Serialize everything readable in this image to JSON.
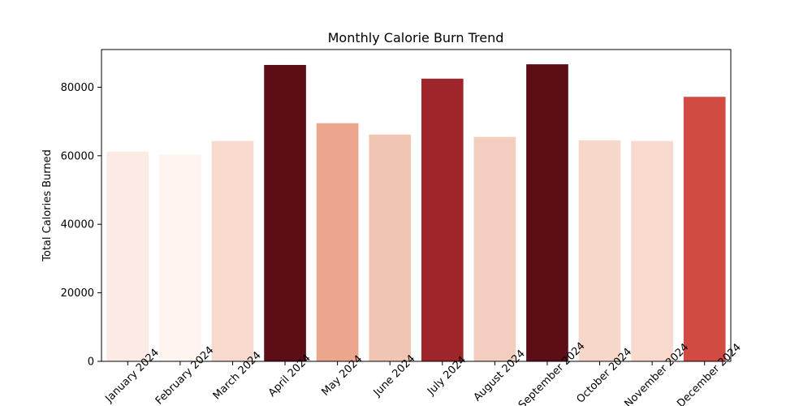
{
  "chart_data": {
    "type": "bar",
    "title": "Monthly Calorie Burn Trend",
    "xlabel": "",
    "ylabel": "Total Calories Burned",
    "categories": [
      "January 2024",
      "February 2024",
      "March 2024",
      "April 2024",
      "May 2024",
      "June 2024",
      "July 2024",
      "August 2024",
      "September 2024",
      "October 2024",
      "November 2024",
      "December 2024"
    ],
    "values": [
      61200,
      60300,
      64300,
      86500,
      69500,
      66200,
      82500,
      65500,
      86700,
      64500,
      64300,
      77200
    ],
    "colors": [
      "#fcebe5",
      "#fff4f0",
      "#f8d9cd",
      "#5c0d16",
      "#eba68d",
      "#f1c5b4",
      "#9e2529",
      "#f3cdbd",
      "#5c0d16",
      "#f7d7ca",
      "#f8d9cd",
      "#d24b42"
    ],
    "yticks": [
      0,
      20000,
      40000,
      60000,
      80000
    ],
    "ylim": [
      0,
      91000
    ],
    "grid": false,
    "legend": "none"
  }
}
